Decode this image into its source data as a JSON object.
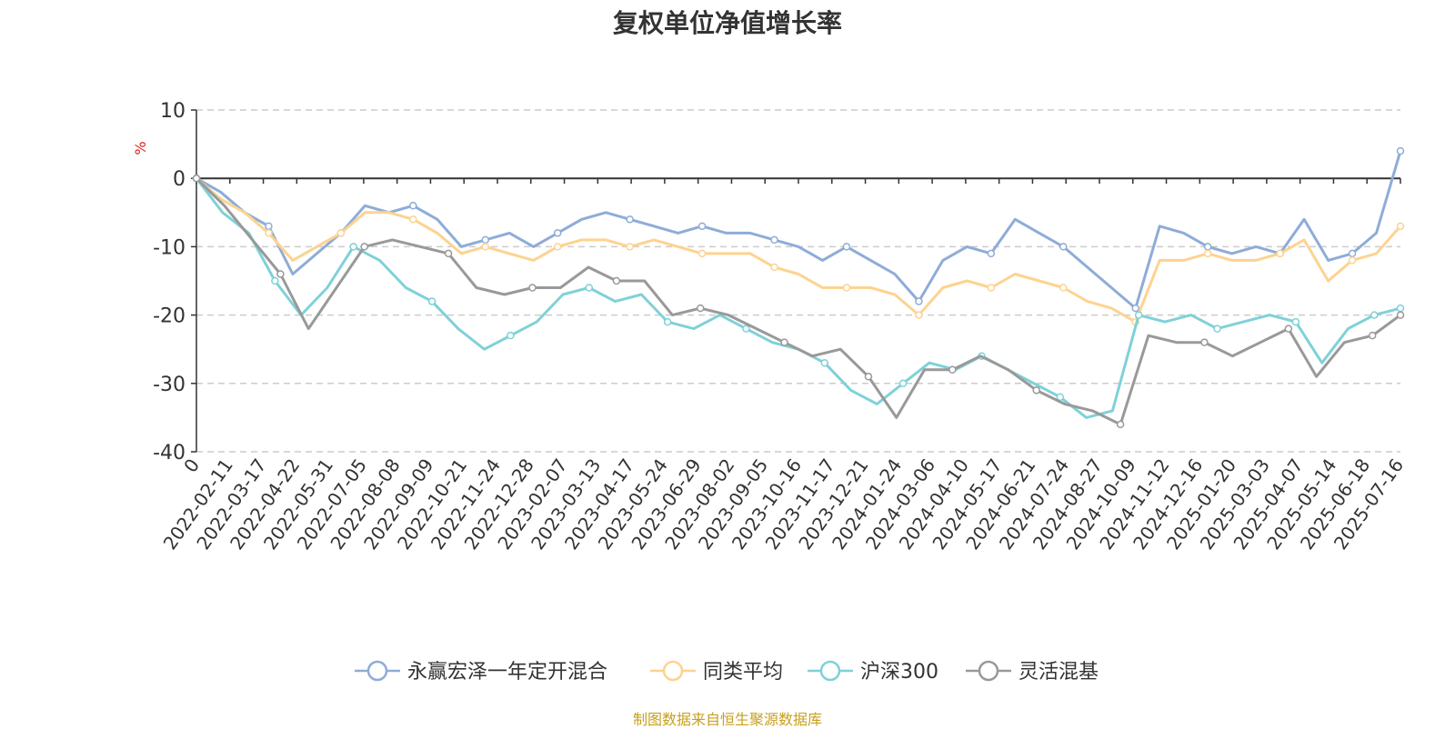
{
  "source_note": "制图数据来自恒生聚源数据库",
  "chart_data": {
    "type": "line",
    "title": "复权单位净值增长率",
    "ylabel": "%",
    "ylim": [
      -40,
      10
    ],
    "yticks": [
      10,
      0,
      -10,
      -20,
      -30,
      -40
    ],
    "grid": true,
    "legend_position": "bottom",
    "x_tick_labels": [
      "0",
      "2022-02-11",
      "2022-03-17",
      "2022-04-22",
      "2022-05-31",
      "2022-07-05",
      "2022-08-08",
      "2022-09-09",
      "2022-10-21",
      "2022-11-24",
      "2022-12-28",
      "2023-02-07",
      "2023-03-13",
      "2023-04-17",
      "2023-05-24",
      "2023-06-29",
      "2023-08-02",
      "2023-09-05",
      "2023-10-16",
      "2023-11-17",
      "2023-12-21",
      "2024-01-24",
      "2024-03-06",
      "2024-04-10",
      "2024-05-17",
      "2024-06-21",
      "2024-07-24",
      "2024-08-27",
      "2024-10-09",
      "2024-11-12",
      "2024-12-16",
      "2025-01-20",
      "2025-03-03",
      "2025-04-07",
      "2025-05-14",
      "2025-06-18",
      "2025-07-16"
    ],
    "series": [
      {
        "name": "永赢宏泽一年定开混合",
        "color": "#8eacd8",
        "values": [
          0,
          -2,
          -5,
          -7,
          -14,
          -11,
          -8,
          -4,
          -5,
          -4,
          -6,
          -10,
          -9,
          -8,
          -10,
          -8,
          -6,
          -5,
          -6,
          -7,
          -8,
          -7,
          -8,
          -8,
          -9,
          -10,
          -12,
          -10,
          -12,
          -14,
          -18,
          -12,
          -10,
          -11,
          -6,
          -8,
          -10,
          -13,
          -16,
          -19,
          -7,
          -8,
          -10,
          -11,
          -10,
          -11,
          -6,
          -12,
          -11,
          -8,
          4
        ]
      },
      {
        "name": "同类平均",
        "color": "#fdd38f",
        "values": [
          0,
          -3,
          -5,
          -8,
          -12,
          -10,
          -8,
          -5,
          -5,
          -6,
          -8,
          -11,
          -10,
          -11,
          -12,
          -10,
          -9,
          -9,
          -10,
          -9,
          -10,
          -11,
          -11,
          -11,
          -13,
          -14,
          -16,
          -16,
          -16,
          -17,
          -20,
          -16,
          -15,
          -16,
          -14,
          -15,
          -16,
          -18,
          -19,
          -21,
          -12,
          -12,
          -11,
          -12,
          -12,
          -11,
          -9,
          -15,
          -12,
          -11,
          -7
        ]
      },
      {
        "name": "沪深300",
        "color": "#7fd1d8",
        "values": [
          0,
          -5,
          -8,
          -15,
          -20,
          -16,
          -10,
          -12,
          -16,
          -18,
          -22,
          -25,
          -23,
          -21,
          -17,
          -16,
          -18,
          -17,
          -21,
          -22,
          -20,
          -22,
          -24,
          -25,
          -27,
          -31,
          -33,
          -30,
          -27,
          -28,
          -26,
          -28,
          -30,
          -32,
          -35,
          -34,
          -20,
          -21,
          -20,
          -22,
          -21,
          -20,
          -21,
          -27,
          -22,
          -20,
          -19
        ]
      },
      {
        "name": "灵活混基",
        "color": "#999999",
        "values": [
          0,
          -4,
          -9,
          -14,
          -22,
          -16,
          -10,
          -9,
          -10,
          -11,
          -16,
          -17,
          -16,
          -16,
          -13,
          -15,
          -15,
          -20,
          -19,
          -20,
          -22,
          -24,
          -26,
          -25,
          -29,
          -35,
          -28,
          -28,
          -26,
          -28,
          -31,
          -33,
          -34,
          -36,
          -23,
          -24,
          -24,
          -26,
          -24,
          -22,
          -29,
          -24,
          -23,
          -20
        ]
      }
    ]
  }
}
